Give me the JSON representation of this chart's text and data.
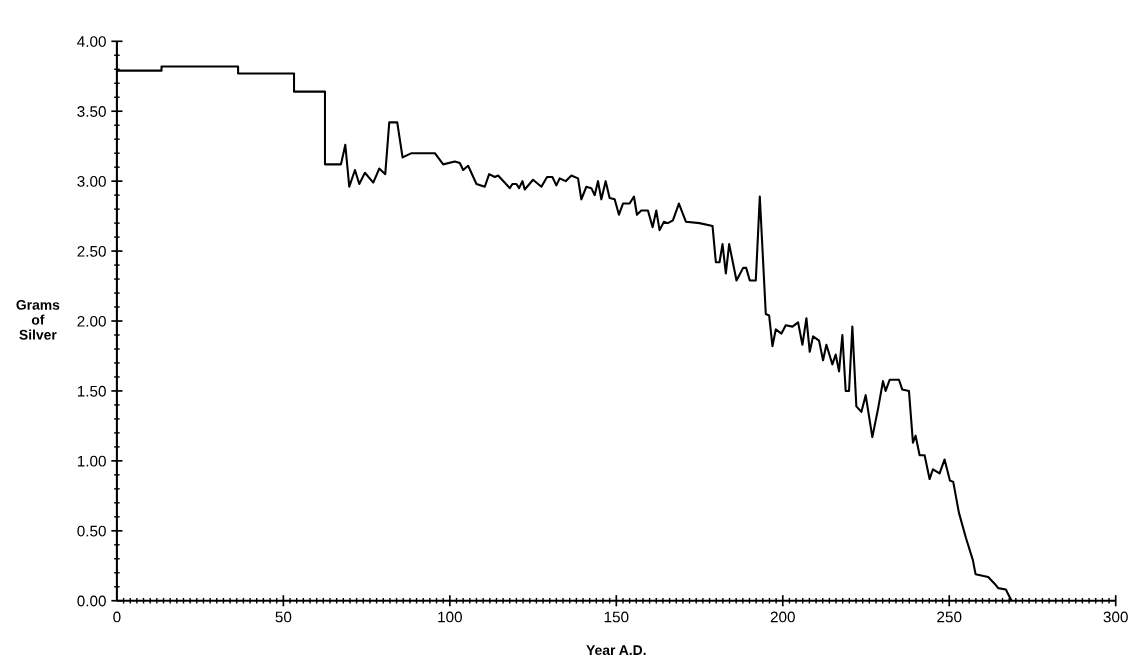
{
  "chart_data": {
    "type": "line",
    "xlabel": "Year A.D.",
    "ylabel": "Grams\nof\nSilver",
    "x": [
      0,
      13.4,
      13.4,
      36.4,
      36.4,
      53.2,
      53.2,
      62.5,
      62.5,
      67.3,
      68.6,
      69.8,
      71.5,
      72.8,
      74.5,
      77,
      78.8,
      80.6,
      81.8,
      84.2,
      85.8,
      88.5,
      95.5,
      98,
      101.5,
      103,
      104,
      105.5,
      108,
      110.5,
      111.8,
      113.5,
      114.5,
      118,
      118.8,
      120,
      120.8,
      121.8,
      122.5,
      125,
      127.5,
      129.2,
      130.8,
      132,
      133,
      134.8,
      136.5,
      138.5,
      139.5,
      141,
      142.5,
      143.5,
      144.5,
      145.5,
      146.8,
      148,
      149.5,
      150.8,
      152,
      154,
      155.3,
      156.2,
      157.5,
      159.5,
      160.9,
      162,
      163,
      164.3,
      165.5,
      167,
      168.8,
      170.9,
      175,
      178.9,
      179.9,
      181,
      181.9,
      182.9,
      183.9,
      186.1,
      188.1,
      189,
      190.1,
      191.9,
      193.1,
      194.9,
      195.9,
      196.9,
      197.9,
      199.6,
      200.9,
      202.9,
      204.6,
      205.9,
      207.1,
      208.1,
      209.1,
      210.9,
      212.1,
      213.1,
      214.9,
      215.9,
      216.9,
      217.9,
      218.9,
      219.9,
      220.9,
      222.1,
      223.6,
      224.9,
      226.9,
      228.6,
      230.1,
      230.9,
      232.1,
      234.9,
      235.9,
      237.9,
      239.1,
      239.9,
      241.1,
      242.6,
      244.1,
      245.1,
      247.1,
      248.6,
      250.2,
      251.2,
      252.9,
      255,
      257.1,
      257.9,
      261.7,
      263.7,
      264.7,
      267,
      268.7
    ],
    "series": [
      {
        "color": "#000000",
        "values": [
          3.79,
          3.79,
          3.82,
          3.82,
          3.77,
          3.77,
          3.64,
          3.64,
          3.12,
          3.12,
          3.26,
          2.96,
          3.08,
          2.98,
          3.06,
          2.99,
          3.09,
          3.05,
          3.42,
          3.42,
          3.17,
          3.2,
          3.2,
          3.12,
          3.14,
          3.13,
          3.08,
          3.11,
          2.98,
          2.96,
          3.05,
          3.03,
          3.04,
          2.95,
          2.98,
          2.98,
          2.95,
          3.0,
          2.94,
          3.01,
          2.96,
          3.03,
          3.03,
          2.97,
          3.02,
          3.0,
          3.04,
          3.02,
          2.87,
          2.96,
          2.95,
          2.9,
          3.0,
          2.87,
          3.0,
          2.88,
          2.87,
          2.76,
          2.84,
          2.84,
          2.89,
          2.76,
          2.79,
          2.79,
          2.67,
          2.79,
          2.65,
          2.71,
          2.7,
          2.72,
          2.84,
          2.71,
          2.7,
          2.68,
          2.42,
          2.42,
          2.55,
          2.34,
          2.55,
          2.29,
          2.38,
          2.38,
          2.29,
          2.29,
          2.89,
          2.05,
          2.04,
          1.82,
          1.94,
          1.91,
          1.97,
          1.96,
          1.99,
          1.83,
          2.02,
          1.78,
          1.89,
          1.86,
          1.72,
          1.83,
          1.69,
          1.76,
          1.64,
          1.9,
          1.5,
          1.5,
          1.96,
          1.39,
          1.35,
          1.47,
          1.17,
          1.37,
          1.57,
          1.5,
          1.58,
          1.58,
          1.51,
          1.5,
          1.13,
          1.18,
          1.04,
          1.04,
          0.87,
          0.94,
          0.91,
          1.01,
          0.86,
          0.85,
          0.63,
          0.45,
          0.29,
          0.19,
          0.17,
          0.12,
          0.09,
          0.08,
          0
        ]
      }
    ],
    "xlim": [
      0,
      300
    ],
    "xticks": [
      0,
      50,
      100,
      150,
      200,
      250,
      300
    ],
    "ylim": [
      0,
      4
    ],
    "yticks": [
      {
        "value": 0,
        "label": "0.00"
      },
      {
        "value": 0.5,
        "label": "0.50"
      },
      {
        "value": 1,
        "label": "1.00"
      },
      {
        "value": 1.5,
        "label": "1.50"
      },
      {
        "value": 2,
        "label": "2.00"
      },
      {
        "value": 2.5,
        "label": "2.50"
      },
      {
        "value": 3,
        "label": "3.00"
      },
      {
        "value": 3.5,
        "label": "3.50"
      },
      {
        "value": 4,
        "label": "4.00"
      }
    ],
    "marker": "none",
    "line_style": "solid"
  }
}
